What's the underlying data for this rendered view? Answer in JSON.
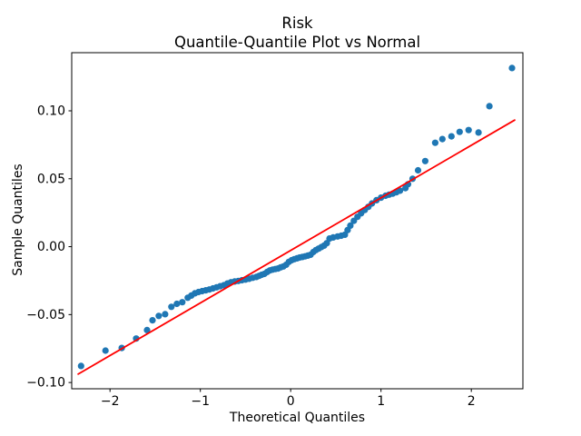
{
  "figure": {
    "background": "#ffffff",
    "frame_color": "#000000"
  },
  "chart_data": {
    "type": "scatter",
    "title_line1": "Risk",
    "title_line2": "Quantile-Quantile Plot vs Normal",
    "xlabel": "Theoretical Quantiles",
    "ylabel": "Sample Quantiles",
    "xlim": [
      -2.424,
      2.571
    ],
    "ylim": [
      -0.1046,
      0.1428
    ],
    "grid": false,
    "marker_color": "#1f77b4",
    "fit_line_color": "#ff0000",
    "xticks": [
      {
        "v": -2,
        "label": "−2"
      },
      {
        "v": -1,
        "label": "−1"
      },
      {
        "v": 0,
        "label": "0"
      },
      {
        "v": 1,
        "label": "1"
      },
      {
        "v": 2,
        "label": "2"
      }
    ],
    "yticks": [
      {
        "v": -0.1,
        "label": "−0.10"
      },
      {
        "v": -0.05,
        "label": "−0.05"
      },
      {
        "v": 0.0,
        "label": "0.00"
      },
      {
        "v": 0.05,
        "label": "0.05"
      },
      {
        "v": 0.1,
        "label": "0.10"
      }
    ],
    "fit_line": {
      "x1": -2.353,
      "y1": -0.0938,
      "x2": 2.48,
      "y2": 0.0932
    },
    "points": [
      [
        -2.32,
        -0.0878
      ],
      [
        -2.05,
        -0.0765
      ],
      [
        -1.87,
        -0.0746
      ],
      [
        -1.71,
        -0.0676
      ],
      [
        -1.59,
        -0.0614
      ],
      [
        -1.53,
        -0.0542
      ],
      [
        -1.46,
        -0.051
      ],
      [
        -1.39,
        -0.0497
      ],
      [
        -1.32,
        -0.0443
      ],
      [
        -1.26,
        -0.0421
      ],
      [
        -1.2,
        -0.0409
      ],
      [
        -1.14,
        -0.0376
      ],
      [
        -1.1,
        -0.036
      ],
      [
        -1.06,
        -0.0343
      ],
      [
        -1.02,
        -0.0334
      ],
      [
        -0.98,
        -0.0327
      ],
      [
        -0.94,
        -0.0321
      ],
      [
        -0.9,
        -0.0315
      ],
      [
        -0.86,
        -0.0307
      ],
      [
        -0.82,
        -0.0299
      ],
      [
        -0.78,
        -0.0291
      ],
      [
        -0.74,
        -0.0284
      ],
      [
        -0.7,
        -0.0271
      ],
      [
        -0.66,
        -0.0262
      ],
      [
        -0.62,
        -0.0256
      ],
      [
        -0.58,
        -0.0252
      ],
      [
        -0.54,
        -0.0247
      ],
      [
        -0.5,
        -0.0242
      ],
      [
        -0.46,
        -0.0236
      ],
      [
        -0.42,
        -0.0229
      ],
      [
        -0.38,
        -0.0223
      ],
      [
        -0.35,
        -0.0215
      ],
      [
        -0.32,
        -0.0207
      ],
      [
        -0.29,
        -0.02
      ],
      [
        -0.26,
        -0.0186
      ],
      [
        -0.23,
        -0.0175
      ],
      [
        -0.2,
        -0.0169
      ],
      [
        -0.17,
        -0.0165
      ],
      [
        -0.14,
        -0.0161
      ],
      [
        -0.11,
        -0.0152
      ],
      [
        -0.08,
        -0.0145
      ],
      [
        -0.05,
        -0.0133
      ],
      [
        -0.02,
        -0.0112
      ],
      [
        0.01,
        -0.01
      ],
      [
        0.04,
        -0.0092
      ],
      [
        0.07,
        -0.0086
      ],
      [
        0.1,
        -0.008
      ],
      [
        0.13,
        -0.0076
      ],
      [
        0.16,
        -0.0071
      ],
      [
        0.19,
        -0.0066
      ],
      [
        0.22,
        -0.006
      ],
      [
        0.25,
        -0.004
      ],
      [
        0.28,
        -0.0025
      ],
      [
        0.31,
        -0.0014
      ],
      [
        0.34,
        -0.0003
      ],
      [
        0.37,
        0.0008
      ],
      [
        0.4,
        0.0026
      ],
      [
        0.43,
        0.006
      ],
      [
        0.47,
        0.0068
      ],
      [
        0.52,
        0.0075
      ],
      [
        0.56,
        0.0081
      ],
      [
        0.6,
        0.0088
      ],
      [
        0.63,
        0.0122
      ],
      [
        0.66,
        0.0155
      ],
      [
        0.7,
        0.019
      ],
      [
        0.74,
        0.022
      ],
      [
        0.78,
        0.0246
      ],
      [
        0.82,
        0.027
      ],
      [
        0.86,
        0.0293
      ],
      [
        0.9,
        0.0318
      ],
      [
        0.95,
        0.0342
      ],
      [
        1.0,
        0.0361
      ],
      [
        1.05,
        0.0375
      ],
      [
        1.09,
        0.0383
      ],
      [
        1.13,
        0.039
      ],
      [
        1.17,
        0.04
      ],
      [
        1.21,
        0.0412
      ],
      [
        1.27,
        0.0431
      ],
      [
        1.3,
        0.046
      ],
      [
        1.35,
        0.05
      ],
      [
        1.41,
        0.0562
      ],
      [
        1.49,
        0.063
      ],
      [
        1.6,
        0.0765
      ],
      [
        1.68,
        0.0792
      ],
      [
        1.78,
        0.0812
      ],
      [
        1.87,
        0.0845
      ],
      [
        1.97,
        0.0858
      ],
      [
        2.08,
        0.084
      ],
      [
        2.2,
        0.1034
      ],
      [
        2.45,
        0.1315
      ]
    ]
  }
}
